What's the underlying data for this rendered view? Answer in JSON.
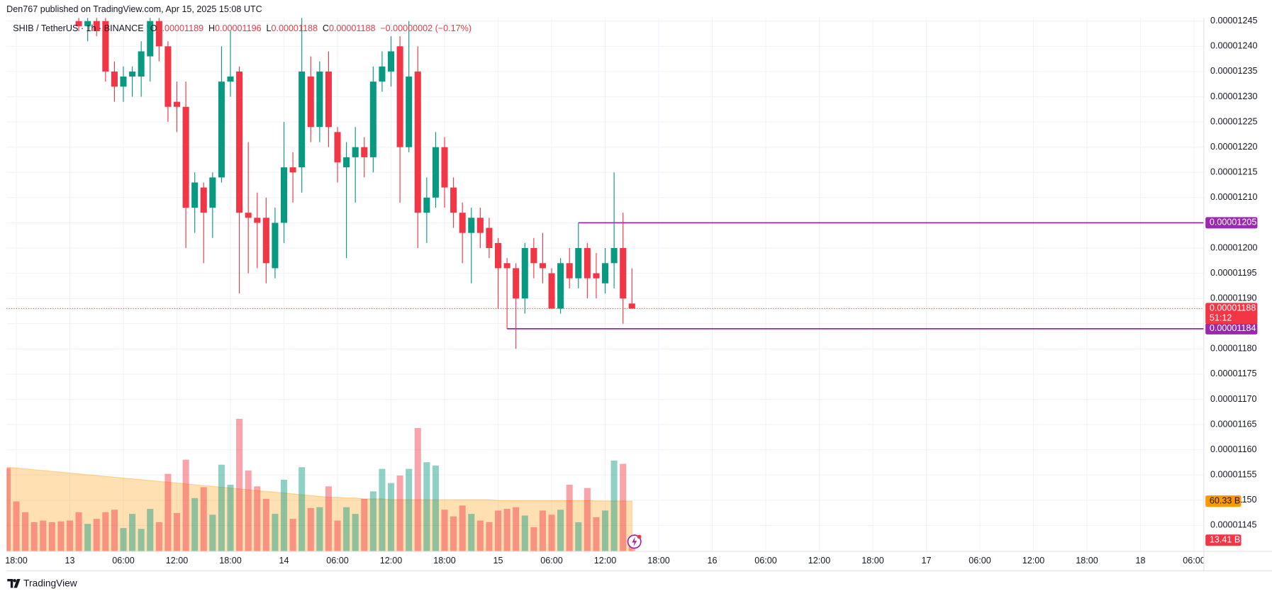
{
  "header": "Den767 published on TradingView.com, Apr 15, 2025 15:08 UTC",
  "footer": "TradingView",
  "chart_data": {
    "type": "candlestick",
    "symbol": "SHIB / TetherUS · 1h · BINANCE",
    "legend_fields": [
      "O",
      "H",
      "L",
      "C"
    ],
    "change": "−0.00000002 (−0.17%)",
    "countdown": "51:12",
    "up_color": "#089981",
    "down_color": "#f23645",
    "open": [
      null,
      null,
      null,
      null,
      null,
      null,
      null,
      null,
      1.245e-05,
      1.244e-05,
      1.245e-05,
      1.245e-05,
      1.235e-05,
      1.232e-05,
      1.234e-05,
      1.234e-05,
      1.238e-05,
      1.245e-05,
      1.24e-05,
      1.229e-05,
      1.228e-05,
      1.208e-05,
      1.212e-05,
      1.208e-05,
      1.214e-05,
      1.233e-05,
      1.235e-05,
      1.207e-05,
      1.206e-05,
      1.206e-05,
      1.196e-05,
      1.205e-05,
      1.216e-05,
      1.216e-05,
      1.234e-05,
      1.224e-05,
      1.235e-05,
      1.223e-05,
      1.216e-05,
      1.218e-05,
      1.22e-05,
      1.218e-05,
      1.233e-05,
      1.235e-05,
      1.24e-05,
      1.22e-05,
      1.235e-05,
      1.207e-05,
      1.21e-05,
      1.22e-05,
      1.212e-05,
      1.207e-05,
      1.203e-05,
      1.206e-05,
      1.204e-05,
      1.201e-05,
      1.197e-05,
      1.196e-05,
      1.19e-05,
      1.2e-05,
      1.197e-05,
      1.195e-05,
      1.188e-05,
      1.197e-05,
      1.194e-05,
      1.2e-05,
      1.195e-05,
      1.193e-05,
      1.197e-05,
      1.2e-05,
      1.189e-05
    ],
    "high": [
      null,
      null,
      null,
      null,
      null,
      null,
      null,
      null,
      1.247e-05,
      1.246e-05,
      1.246e-05,
      1.246e-05,
      1.237e-05,
      1.236e-05,
      1.236e-05,
      1.241e-05,
      1.247e-05,
      1.247e-05,
      1.241e-05,
      1.233e-05,
      1.233e-05,
      1.215e-05,
      1.213e-05,
      1.215e-05,
      1.24e-05,
      1.243e-05,
      1.236e-05,
      1.221e-05,
      1.211e-05,
      1.21e-05,
      1.208e-05,
      1.225e-05,
      1.219e-05,
      1.247e-05,
      1.238e-05,
      1.237e-05,
      1.239e-05,
      1.224e-05,
      1.221e-05,
      1.224e-05,
      1.222e-05,
      1.236e-05,
      1.239e-05,
      1.242e-05,
      1.242e-05,
      1.245e-05,
      1.24e-05,
      1.214e-05,
      1.223e-05,
      1.222e-05,
      1.214e-05,
      1.209e-05,
      1.208e-05,
      1.208e-05,
      1.206e-05,
      1.202e-05,
      1.198e-05,
      1.197e-05,
      1.201e-05,
      1.202e-05,
      1.203e-05,
      1.196e-05,
      1.198e-05,
      1.2e-05,
      1.205e-05,
      1.201e-05,
      1.199e-05,
      1.2e-05,
      1.215e-05,
      1.207e-05,
      1.196e-05
    ],
    "low": [
      null,
      null,
      null,
      null,
      null,
      null,
      null,
      null,
      1.243e-05,
      1.241e-05,
      1.242e-05,
      1.233e-05,
      1.229e-05,
      1.229e-05,
      1.23e-05,
      1.23e-05,
      1.233e-05,
      1.237e-05,
      1.225e-05,
      1.223e-05,
      1.2e-05,
      1.203e-05,
      1.197e-05,
      1.202e-05,
      1.213e-05,
      1.23e-05,
      1.191e-05,
      1.195e-05,
      1.196e-05,
      1.193e-05,
      1.194e-05,
      1.201e-05,
      1.209e-05,
      1.211e-05,
      1.221e-05,
      1.221e-05,
      1.22e-05,
      1.213e-05,
      1.198e-05,
      1.209e-05,
      1.214e-05,
      1.215e-05,
      1.231e-05,
      1.232e-05,
      1.209e-05,
      1.219e-05,
      1.2e-05,
      1.201e-05,
      1.208e-05,
      1.208e-05,
      1.204e-05,
      1.197e-05,
      1.193e-05,
      1.2e-05,
      1.198e-05,
      1.188e-05,
      1.184e-05,
      1.18e-05,
      1.187e-05,
      1.194e-05,
      1.193e-05,
      1.188e-05,
      1.187e-05,
      1.192e-05,
      1.192e-05,
      1.19e-05,
      1.19e-05,
      1.191e-05,
      1.192e-05,
      1.185e-05,
      1.188e-05
    ],
    "close": [
      null,
      null,
      null,
      null,
      null,
      null,
      null,
      null,
      1.244e-05,
      1.245e-05,
      1.243e-05,
      1.235e-05,
      1.232e-05,
      1.234e-05,
      1.235e-05,
      1.239e-05,
      1.245e-05,
      1.24e-05,
      1.228e-05,
      1.228e-05,
      1.208e-05,
      1.213e-05,
      1.207e-05,
      1.214e-05,
      1.233e-05,
      1.234e-05,
      1.207e-05,
      1.206e-05,
      1.205e-05,
      1.197e-05,
      1.205e-05,
      1.216e-05,
      1.215e-05,
      1.235e-05,
      1.224e-05,
      1.235e-05,
      1.224e-05,
      1.217e-05,
      1.218e-05,
      1.22e-05,
      1.218e-05,
      1.233e-05,
      1.236e-05,
      1.239e-05,
      1.22e-05,
      1.234e-05,
      1.207e-05,
      1.21e-05,
      1.22e-05,
      1.212e-05,
      1.207e-05,
      1.203e-05,
      1.206e-05,
      1.203e-05,
      1.2e-05,
      1.196e-05,
      1.196e-05,
      1.19e-05,
      1.2e-05,
      1.197e-05,
      1.196e-05,
      1.188e-05,
      1.197e-05,
      1.194e-05,
      1.2e-05,
      1.194e-05,
      1.194e-05,
      1.197e-05,
      1.2e-05,
      1.19e-05,
      1.188e-05
    ],
    "volume": {
      "values": [
        100,
        60,
        47,
        35,
        37,
        35,
        36,
        37,
        47,
        33,
        39,
        47,
        50,
        28,
        45,
        27,
        51,
        35,
        93,
        46,
        110,
        64,
        77,
        44,
        104,
        80,
        159,
        97,
        78,
        63,
        45,
        86,
        39,
        101,
        52,
        53,
        78,
        37,
        53,
        45,
        63,
        72,
        99,
        82,
        91,
        99,
        148,
        107,
        103,
        50,
        42,
        55,
        45,
        37,
        35,
        49,
        51,
        53,
        43,
        29,
        49,
        44,
        50,
        80,
        35,
        76,
        41,
        49,
        109,
        105,
        13.41
      ],
      "last_label": "13.41 B"
    },
    "volume_ma": {
      "values": [
        101,
        100,
        99,
        98,
        97,
        96,
        95,
        94,
        93,
        92,
        91,
        90,
        89,
        88,
        87,
        86,
        85,
        84,
        83,
        82,
        81,
        80,
        79,
        78,
        77,
        76,
        75,
        74,
        73,
        72,
        71,
        70,
        69,
        68,
        67,
        66,
        65,
        65,
        64,
        64,
        63,
        63,
        63,
        62,
        62,
        62,
        62,
        62,
        62,
        62,
        62,
        62,
        62,
        62,
        62,
        61,
        61,
        61,
        61,
        61,
        61,
        61,
        61,
        61,
        61,
        61,
        60.5,
        60.5,
        60.4,
        60.4,
        60.33
      ],
      "last_label": "60.33 B",
      "color": "#ff9800"
    },
    "volume_ylim": [
      0,
      640
    ],
    "xlim": [
      -0.1,
      134.1
    ],
    "xticks": [
      {
        "value": 1,
        "label": "18:00"
      },
      {
        "value": 7,
        "label": "13"
      },
      {
        "value": 13,
        "label": "06:00"
      },
      {
        "value": 19,
        "label": "12:00"
      },
      {
        "value": 25,
        "label": "18:00"
      },
      {
        "value": 31,
        "label": "14"
      },
      {
        "value": 37,
        "label": "06:00"
      },
      {
        "value": 43,
        "label": "12:00"
      },
      {
        "value": 49,
        "label": "18:00"
      },
      {
        "value": 55,
        "label": "15"
      },
      {
        "value": 61,
        "label": "06:00"
      },
      {
        "value": 67,
        "label": "12:00"
      },
      {
        "value": 73,
        "label": "18:00"
      },
      {
        "value": 79,
        "label": "16"
      },
      {
        "value": 85,
        "label": "06:00"
      },
      {
        "value": 91,
        "label": "12:00"
      },
      {
        "value": 97,
        "label": "18:00"
      },
      {
        "value": 103,
        "label": "17"
      },
      {
        "value": 109,
        "label": "06:00"
      },
      {
        "value": 115,
        "label": "12:00"
      },
      {
        "value": 121,
        "label": "18:00"
      },
      {
        "value": 127,
        "label": "18"
      },
      {
        "value": 133,
        "label": "06:00"
      }
    ],
    "ylim": [
      1.13985e-05,
      1.24564e-05
    ],
    "yticks": [
      1.145e-05,
      {
        "value": 1.15e-05,
        "label": "0.00001150"
      },
      1.155e-05,
      {
        "value": 1.16e-05,
        "label": "0.00001160"
      },
      1.165e-05,
      {
        "value": 1.17e-05,
        "label": "0.00001170"
      },
      1.175e-05,
      {
        "value": 1.18e-05,
        "label": "0.00001180"
      },
      1.185e-05,
      {
        "value": 1.19e-05,
        "label": "0.00001190"
      },
      1.195e-05,
      {
        "value": 1.2e-05,
        "label": "0.00001200"
      },
      1.205e-05,
      {
        "value": 1.21e-05,
        "label": "0.00001210"
      },
      1.215e-05,
      {
        "value": 1.22e-05,
        "label": "0.00001220"
      },
      1.225e-05,
      {
        "value": 1.23e-05,
        "label": "0.00001230"
      },
      1.235e-05,
      {
        "value": 1.24e-05,
        "label": "0.00001240"
      },
      1.245e-05
    ],
    "hlines": [
      {
        "value": 1.205e-05,
        "start": 64,
        "color": "#9c27b0"
      },
      {
        "value": 1.184e-05,
        "start": 56,
        "color": "#9c27b0"
      }
    ],
    "grid": true
  }
}
